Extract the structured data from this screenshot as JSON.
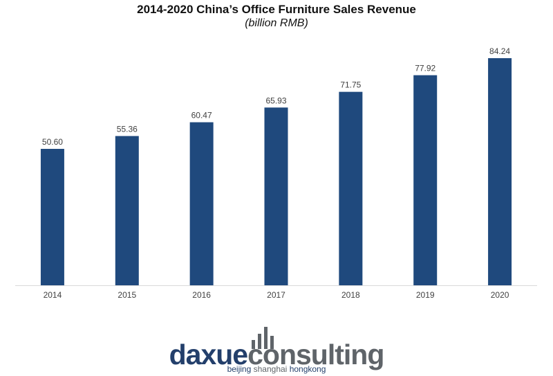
{
  "chart_data": {
    "type": "bar",
    "title": "2014-2020 China’s Office Furniture Sales Revenue",
    "subtitle": "(billion RMB)",
    "xlabel": "",
    "ylabel": "",
    "categories": [
      "2014",
      "2015",
      "2016",
      "2017",
      "2018",
      "2019",
      "2020"
    ],
    "values": [
      50.6,
      55.36,
      60.47,
      65.93,
      71.75,
      77.92,
      84.24
    ],
    "value_labels": [
      "50.60",
      "55.36",
      "60.47",
      "65.93",
      "71.75",
      "77.92",
      "84.24"
    ],
    "ylim": [
      0,
      84.24
    ],
    "grid": false,
    "legend": "none",
    "colors": {
      "bar": "#1f497d",
      "axis": "#d9d9d9",
      "text": "#404040"
    }
  },
  "logo": {
    "text_part1": "daxue",
    "text_part2": "consulting",
    "tagline_part1": "beijing",
    "tagline_part2": "shanghai",
    "tagline_part3": "hongkong"
  }
}
